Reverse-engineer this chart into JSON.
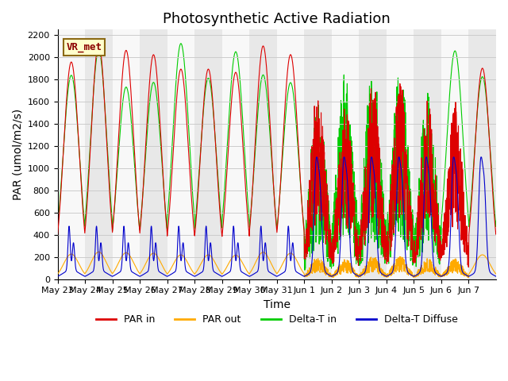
{
  "title": "Photosynthetic Active Radiation",
  "ylabel": "PAR (umol/m2/s)",
  "xlabel": "Time",
  "ylim": [
    0,
    2250
  ],
  "yticks": [
    0,
    200,
    400,
    600,
    800,
    1000,
    1200,
    1400,
    1600,
    1800,
    2000,
    2200
  ],
  "n_days": 16,
  "colors": {
    "par_in": "#dd0000",
    "par_out": "#ffaa00",
    "delta_t_in": "#00cc00",
    "delta_t_diffuse": "#0000cc",
    "background_light": "#e8e8e8",
    "background_white": "#f8f8f8",
    "grid": "#cccccc"
  },
  "legend_labels": [
    "PAR in",
    "PAR out",
    "Delta-T in",
    "Delta-T Diffuse"
  ],
  "annotation_text": "VR_met",
  "title_fontsize": 13,
  "axis_fontsize": 10,
  "tick_fontsize": 8,
  "x_tick_labels": [
    "May 23",
    "May 24",
    "May 25",
    "May 26",
    "May 27",
    "May 28",
    "May 29",
    "May 30",
    "May 31",
    "Jun 1",
    "Jun 2",
    "Jun 3",
    "Jun 4",
    "Jun 5",
    "Jun 6",
    "Jun 7"
  ],
  "x_tick_positions": [
    0,
    1,
    2,
    3,
    4,
    5,
    6,
    7,
    8,
    9,
    10,
    11,
    12,
    13,
    14,
    15
  ]
}
